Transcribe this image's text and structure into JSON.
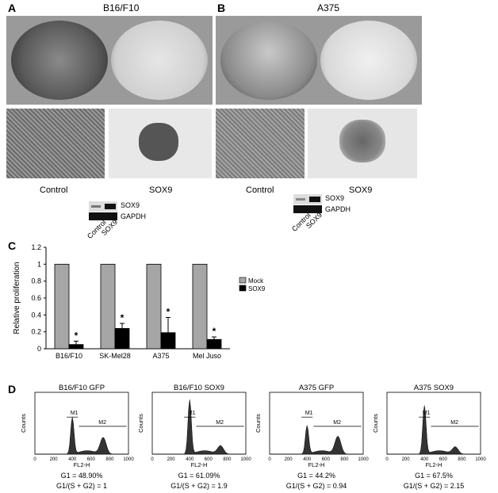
{
  "panels": {
    "A": {
      "letter": "A",
      "title": "B16/F10",
      "cond_control": "Control",
      "cond_sox9": "SOX9",
      "blot_label1": "SOX9",
      "blot_label2": "GAPDH",
      "lane1": "Control",
      "lane2": "SOX9"
    },
    "B": {
      "letter": "B",
      "title": "A375",
      "cond_control": "Control",
      "cond_sox9": "SOX9",
      "blot_label1": "SOX9",
      "blot_label2": "GAPDH",
      "lane1": "Control",
      "lane2": "SOX9"
    },
    "C": {
      "letter": "C"
    },
    "D": {
      "letter": "D"
    }
  },
  "chart_data": [
    {
      "type": "bar",
      "ylabel": "Relative proliferation",
      "ylim": [
        0,
        1.2
      ],
      "yticks": [
        "0",
        "0.2",
        "0.4",
        "0.6",
        "0.8",
        "1",
        "1.2"
      ],
      "categories": [
        "B16/F10",
        "SK-Mel28",
        "A375",
        "Mel Juso"
      ],
      "series": [
        {
          "name": "Mock",
          "values": [
            1,
            1,
            1,
            1
          ],
          "color": "#a6a6a6"
        },
        {
          "name": "SOX9",
          "values": [
            0.05,
            0.24,
            0.19,
            0.11
          ],
          "errors": [
            0.04,
            0.06,
            0.18,
            0.03
          ],
          "color": "#000000"
        }
      ],
      "annotations": [
        "*",
        "*",
        "*",
        "*"
      ],
      "legend": "right"
    }
  ],
  "flow": [
    {
      "title": "B16/F10 GFP",
      "m1": "M1",
      "m2": "M2",
      "xlabel": "FL2-H",
      "ylabel": "Counts",
      "xticks": [
        "0",
        "200",
        "400",
        "600",
        "800",
        "1000"
      ],
      "stat1": "G1 = 48.90%",
      "stat2": "G1/(S + G2) = 1"
    },
    {
      "title": "B16/F10 SOX9",
      "m1": "M1",
      "m2": "M2",
      "xlabel": "FL2-H",
      "ylabel": "Counts",
      "xticks": [
        "0",
        "200",
        "400",
        "600",
        "800",
        "1000"
      ],
      "stat1": "G1 = 61.09%",
      "stat2": "G1/(S + G2) = 1.9"
    },
    {
      "title": "A375 GFP",
      "m1": "M1",
      "m2": "M2",
      "xlabel": "FL2-H",
      "ylabel": "Counts",
      "xticks": [
        "0",
        "200",
        "400",
        "600",
        "800",
        "1000"
      ],
      "stat1": "G1 = 44.2%",
      "stat2": "G1/(S + G2) = 0.94"
    },
    {
      "title": "A375 SOX9",
      "m1": "M1",
      "m2": "M2",
      "xlabel": "FL2-H",
      "ylabel": "Counts",
      "xticks": [
        "0",
        "200",
        "400",
        "600",
        "800",
        "1000"
      ],
      "stat1": "G1 = 67.5%",
      "stat2": "G1/(S + G2) = 2.15"
    }
  ]
}
